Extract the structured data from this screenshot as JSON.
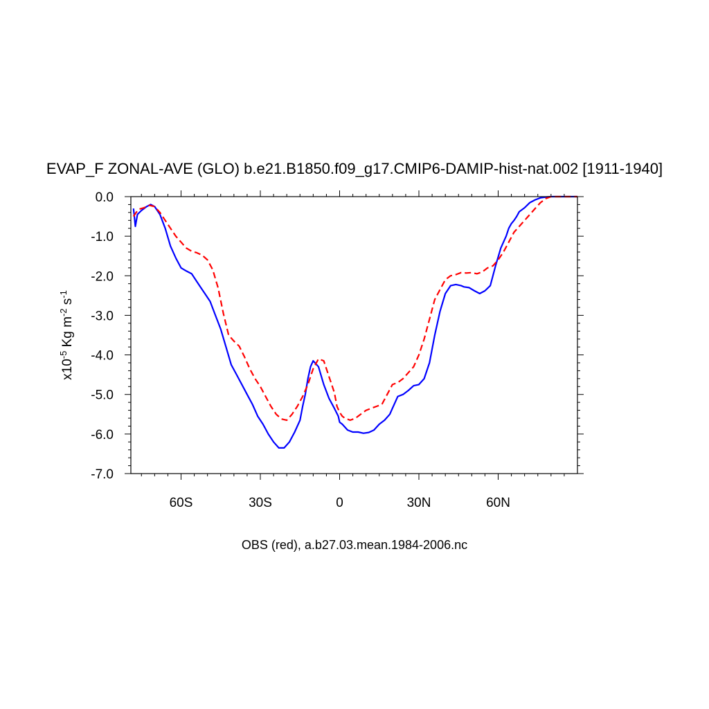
{
  "chart_data": {
    "type": "line",
    "title": "EVAP_F ZONAL-AVE (GLO) b.e21.B1850.f09_g17.CMIP6-DAMIP-hist-nat.002 [1911-1940]",
    "ylabel": {
      "prefix": "x10",
      "exp1": "-5",
      "mid": " Kg m",
      "exp2": "-2",
      "mid2": " s",
      "exp3": "-1"
    },
    "xlabel": "OBS (red), a.b27.03.mean.1984-2006.nc",
    "xlim": [
      -79,
      90
    ],
    "ylim": [
      -7.0,
      0.0
    ],
    "x_ticks": [
      {
        "value": -60,
        "label": "60S"
      },
      {
        "value": -30,
        "label": "30S"
      },
      {
        "value": 0,
        "label": "0"
      },
      {
        "value": 30,
        "label": "30N"
      },
      {
        "value": 60,
        "label": "60N"
      }
    ],
    "y_ticks": [
      {
        "value": 0.0,
        "label": "0.0"
      },
      {
        "value": -1.0,
        "label": "-1.0"
      },
      {
        "value": -2.0,
        "label": "-2.0"
      },
      {
        "value": -3.0,
        "label": "-3.0"
      },
      {
        "value": -4.0,
        "label": "-4.0"
      },
      {
        "value": -5.0,
        "label": "-5.0"
      },
      {
        "value": -6.0,
        "label": "-6.0"
      },
      {
        "value": -7.0,
        "label": "-7.0"
      }
    ],
    "grid": false,
    "series": [
      {
        "color": "#0000ff",
        "dash": "solid",
        "x": [
          -78,
          -77.3,
          -76.5,
          -75,
          -73,
          -71.5,
          -70,
          -68,
          -66,
          -64,
          -62,
          -60,
          -58,
          -56,
          -55,
          -53,
          -51,
          -49,
          -47,
          -45,
          -43,
          -41,
          -39,
          -37,
          -35,
          -33,
          -31,
          -29,
          -27,
          -25,
          -23,
          -21,
          -19,
          -17,
          -15,
          -14,
          -13,
          -12,
          -11,
          -10,
          -8,
          -6,
          -4,
          -2,
          -0.5,
          0,
          1,
          3,
          5,
          7,
          9,
          11,
          13,
          15,
          17,
          19,
          20,
          21,
          22,
          24,
          26,
          28,
          30,
          32,
          34,
          36,
          38,
          40,
          42,
          44,
          46,
          47,
          49,
          51,
          53,
          55,
          57,
          59,
          61,
          63,
          64,
          65,
          66,
          67,
          68,
          70,
          72,
          74,
          76,
          78,
          80,
          82,
          84,
          86,
          88,
          90
        ],
        "y": [
          -0.3,
          -0.75,
          -0.45,
          -0.35,
          -0.25,
          -0.2,
          -0.25,
          -0.45,
          -0.8,
          -1.25,
          -1.55,
          -1.8,
          -1.88,
          -1.95,
          -2.05,
          -2.25,
          -2.45,
          -2.65,
          -3.0,
          -3.35,
          -3.8,
          -4.25,
          -4.5,
          -4.75,
          -5.0,
          -5.25,
          -5.55,
          -5.75,
          -6.0,
          -6.2,
          -6.35,
          -6.35,
          -6.2,
          -5.95,
          -5.65,
          -5.3,
          -5.0,
          -4.6,
          -4.3,
          -4.15,
          -4.3,
          -4.75,
          -5.1,
          -5.35,
          -5.55,
          -5.7,
          -5.75,
          -5.9,
          -5.95,
          -5.95,
          -5.98,
          -5.96,
          -5.9,
          -5.75,
          -5.65,
          -5.5,
          -5.35,
          -5.2,
          -5.05,
          -5.0,
          -4.9,
          -4.78,
          -4.75,
          -4.6,
          -4.2,
          -3.5,
          -2.9,
          -2.45,
          -2.25,
          -2.22,
          -2.25,
          -2.28,
          -2.3,
          -2.38,
          -2.45,
          -2.38,
          -2.25,
          -1.75,
          -1.3,
          -1.0,
          -0.8,
          -0.68,
          -0.6,
          -0.5,
          -0.38,
          -0.28,
          -0.15,
          -0.08,
          -0.03,
          -0.01,
          0.0,
          0.0,
          0.0,
          0.0,
          0.0,
          0.0
        ]
      },
      {
        "color": "#ff0000",
        "dash": "dashed",
        "x": [
          -78,
          -77,
          -76,
          -74,
          -72,
          -70,
          -68,
          -66,
          -64,
          -62,
          -60,
          -58,
          -56,
          -54,
          -52,
          -50,
          -48,
          -46,
          -44,
          -42,
          -40,
          -38,
          -36,
          -34,
          -32,
          -30,
          -28,
          -26,
          -24,
          -22,
          -20,
          -18,
          -16,
          -14,
          -12,
          -10,
          -8,
          -6,
          -4,
          -2,
          -1,
          0,
          1,
          2,
          4,
          6,
          8,
          10,
          12,
          14,
          16,
          18,
          20,
          22,
          24,
          26,
          28,
          30,
          32,
          34,
          36,
          38,
          40,
          42,
          44,
          46,
          48,
          50,
          52,
          54,
          56,
          58,
          60,
          62,
          64,
          66,
          68,
          70,
          72,
          74,
          76,
          78,
          80,
          82,
          84,
          86,
          88,
          90
        ],
        "y": [
          -0.5,
          -0.4,
          -0.32,
          -0.28,
          -0.22,
          -0.25,
          -0.4,
          -0.6,
          -0.8,
          -1.0,
          -1.15,
          -1.3,
          -1.38,
          -1.42,
          -1.48,
          -1.6,
          -1.85,
          -2.3,
          -2.95,
          -3.5,
          -3.65,
          -3.78,
          -4.05,
          -4.35,
          -4.6,
          -4.8,
          -5.05,
          -5.3,
          -5.5,
          -5.62,
          -5.65,
          -5.5,
          -5.3,
          -5.05,
          -4.75,
          -4.35,
          -4.1,
          -4.15,
          -4.55,
          -4.95,
          -5.3,
          -5.45,
          -5.55,
          -5.6,
          -5.65,
          -5.6,
          -5.5,
          -5.4,
          -5.35,
          -5.3,
          -5.25,
          -5.0,
          -4.75,
          -4.7,
          -4.6,
          -4.45,
          -4.3,
          -4.0,
          -3.6,
          -3.1,
          -2.6,
          -2.35,
          -2.1,
          -2.0,
          -1.97,
          -1.92,
          -1.93,
          -1.92,
          -1.95,
          -1.9,
          -1.8,
          -1.75,
          -1.6,
          -1.4,
          -1.15,
          -0.9,
          -0.75,
          -0.6,
          -0.45,
          -0.3,
          -0.15,
          -0.05,
          0.0,
          0.0,
          0.0,
          0.0,
          0.0,
          0.0
        ]
      }
    ]
  }
}
